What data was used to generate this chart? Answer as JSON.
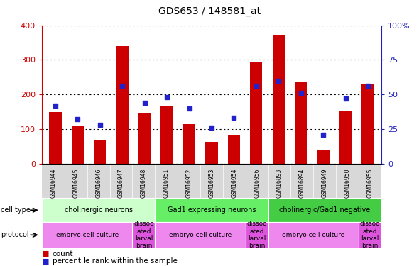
{
  "title": "GDS653 / 148581_at",
  "samples": [
    "GSM16944",
    "GSM16945",
    "GSM16946",
    "GSM16947",
    "GSM16948",
    "GSM16951",
    "GSM16952",
    "GSM16953",
    "GSM16954",
    "GSM16956",
    "GSM16893",
    "GSM16894",
    "GSM16949",
    "GSM16950",
    "GSM16955"
  ],
  "counts": [
    150,
    107,
    70,
    340,
    147,
    165,
    115,
    63,
    83,
    295,
    373,
    238,
    40,
    152,
    228
  ],
  "percentile_ranks": [
    42,
    32,
    28,
    56,
    44,
    48,
    40,
    26,
    33,
    56,
    60,
    51,
    21,
    47,
    56
  ],
  "ylim_left": [
    0,
    400
  ],
  "ylim_right": [
    0,
    100
  ],
  "yticks_left": [
    0,
    100,
    200,
    300,
    400
  ],
  "yticks_right": [
    0,
    25,
    50,
    75,
    100
  ],
  "bar_color": "#cc0000",
  "dot_color": "#2222cc",
  "left_axis_color": "#cc0000",
  "right_axis_color": "#2222bb",
  "cell_type_groups": [
    {
      "label": "cholinergic neurons",
      "start": 0,
      "end": 4,
      "color": "#ccffcc"
    },
    {
      "label": "Gad1 expressing neurons",
      "start": 5,
      "end": 9,
      "color": "#66ee66"
    },
    {
      "label": "cholinergic/Gad1 negative",
      "start": 10,
      "end": 14,
      "color": "#44cc44"
    }
  ],
  "protocol_defs": [
    {
      "start": 0,
      "end": 3,
      "color": "#ee88ee",
      "label": "embryo cell culture"
    },
    {
      "start": 4,
      "end": 4,
      "color": "#dd55dd",
      "label": "dissoo\nated\nlarval\nbrain"
    },
    {
      "start": 5,
      "end": 8,
      "color": "#ee88ee",
      "label": "embryo cell culture"
    },
    {
      "start": 9,
      "end": 9,
      "color": "#dd55dd",
      "label": "dissoo\nated\nlarval\nbrain"
    },
    {
      "start": 10,
      "end": 13,
      "color": "#ee88ee",
      "label": "embryo cell culture"
    },
    {
      "start": 14,
      "end": 14,
      "color": "#dd55dd",
      "label": "dissoo\nated\nlarval\nbrain"
    }
  ]
}
